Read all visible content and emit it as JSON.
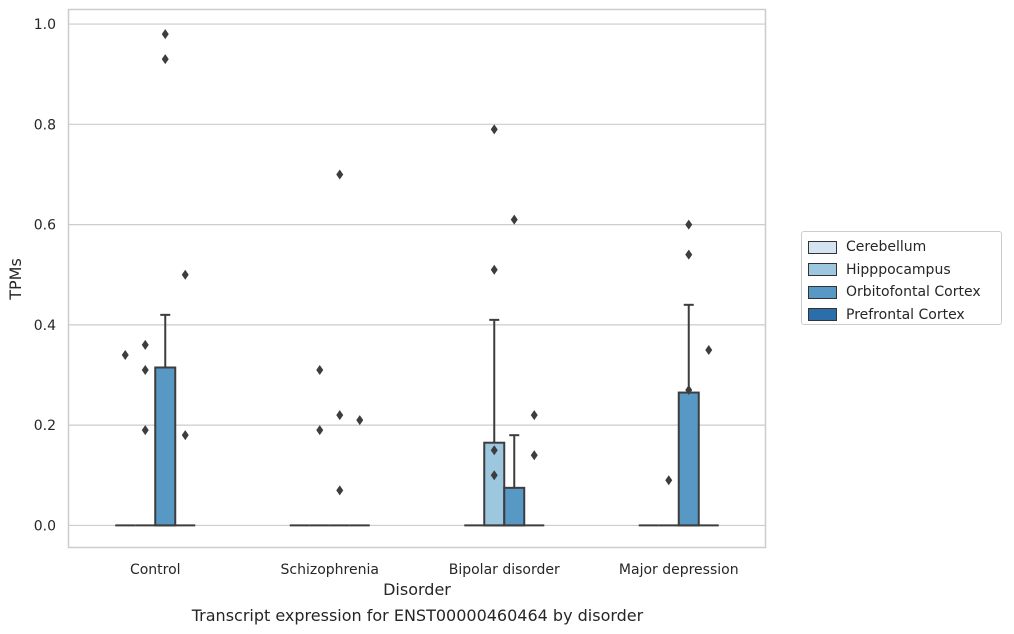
{
  "caption": "Transcript expression for ENST00000460464 by disorder",
  "chart_data": {
    "type": "box",
    "xlabel": "Disorder",
    "ylabel": "TPMs",
    "ylim": [
      -0.045,
      1.03
    ],
    "yticks": [
      "0.0",
      "0.2",
      "0.4",
      "0.6",
      "0.8",
      "1.0"
    ],
    "ytick_values": [
      0,
      0.2,
      0.4,
      0.6,
      0.8,
      1.0
    ],
    "grid": "y",
    "legend_position": "right",
    "categories": [
      "Control",
      "Schizophrenia",
      "Bipolar disorder",
      "Major depression"
    ],
    "series": [
      {
        "name": "Cerebellum",
        "color": "#d4e3f1",
        "boxes": [
          {
            "q1": 0,
            "median": 0,
            "q3": 0,
            "whisker_high": 0,
            "fliers": [
              0.34
            ]
          },
          {
            "q1": 0,
            "median": 0,
            "q3": 0,
            "whisker_high": 0,
            "fliers": []
          },
          {
            "q1": 0,
            "median": 0,
            "q3": 0,
            "whisker_high": 0,
            "fliers": []
          },
          {
            "q1": 0,
            "median": 0,
            "q3": 0,
            "whisker_high": 0,
            "fliers": []
          }
        ]
      },
      {
        "name": "Hipppocampus",
        "color": "#9dc6df",
        "boxes": [
          {
            "q1": 0,
            "median": 0,
            "q3": 0,
            "whisker_high": 0,
            "fliers": [
              0.36,
              0.31,
              0.19
            ]
          },
          {
            "q1": 0,
            "median": 0,
            "q3": 0,
            "whisker_high": 0,
            "fliers": [
              0.31,
              0.19
            ]
          },
          {
            "q1": 0,
            "median": 0,
            "q3": 0.165,
            "whisker_high": 0.41,
            "fliers": [
              0.79,
              0.51,
              0.15,
              0.1
            ]
          },
          {
            "q1": 0,
            "median": 0,
            "q3": 0,
            "whisker_high": 0,
            "fliers": [
              0.09
            ]
          }
        ]
      },
      {
        "name": "Orbitofontal Cortex",
        "color": "#5898c5",
        "boxes": [
          {
            "q1": 0,
            "median": 0,
            "q3": 0.315,
            "whisker_high": 0.42,
            "fliers": [
              0.98,
              0.93
            ]
          },
          {
            "q1": 0,
            "median": 0,
            "q3": 0,
            "whisker_high": 0,
            "fliers": [
              0.7,
              0.22,
              0.07
            ]
          },
          {
            "q1": 0,
            "median": 0,
            "q3": 0.075,
            "whisker_high": 0.18,
            "fliers": [
              0.61
            ]
          },
          {
            "q1": 0,
            "median": 0,
            "q3": 0.265,
            "whisker_high": 0.44,
            "fliers": [
              0.6,
              0.54,
              0.27
            ]
          }
        ]
      },
      {
        "name": "Prefrontal Cortex",
        "color": "#2b6eaa",
        "boxes": [
          {
            "q1": 0,
            "median": 0,
            "q3": 0,
            "whisker_high": 0,
            "fliers": [
              0.5,
              0.18
            ]
          },
          {
            "q1": 0,
            "median": 0,
            "q3": 0,
            "whisker_high": 0,
            "fliers": [
              0.21
            ]
          },
          {
            "q1": 0,
            "median": 0,
            "q3": 0,
            "whisker_high": 0,
            "fliers": [
              0.22,
              0.14
            ]
          },
          {
            "q1": 0,
            "median": 0,
            "q3": 0,
            "whisker_high": 0,
            "fliers": [
              0.35
            ]
          }
        ]
      }
    ]
  }
}
